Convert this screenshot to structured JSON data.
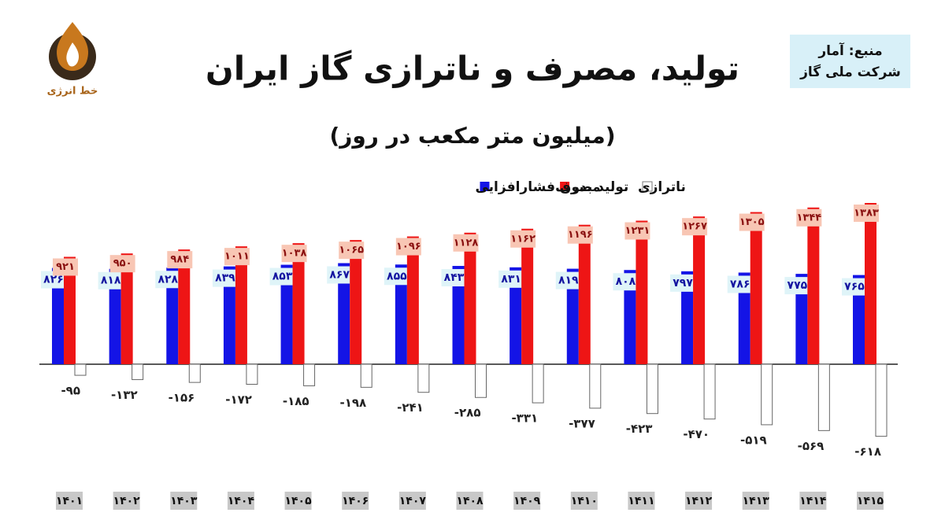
{
  "chart_data": {
    "type": "bar",
    "title": "تولید، مصرف و ناترازی گاز ایران",
    "subtitle": "(میلیون متر مکعب در روز)",
    "categories": [
      "۱۴۰۱",
      "۱۴۰۲",
      "۱۴۰۳",
      "۱۴۰۴",
      "۱۴۰۵",
      "۱۴۰۶",
      "۱۴۰۷",
      "۱۴۰۸",
      "۱۴۰۹",
      "۱۴۱۰",
      "۱۴۱۱",
      "۱۴۱۲",
      "۱۴۱۳",
      "۱۴۱۴",
      "۱۴۱۵"
    ],
    "series": [
      {
        "name": "تولید بدون فشارافزایی",
        "color": "#1414e6",
        "values": [
          826,
          818,
          828,
          839,
          853,
          867,
          855,
          843,
          831,
          819,
          808,
          797,
          786,
          775,
          765
        ],
        "value_labels": [
          "۸۲۶",
          "۸۱۸",
          "۸۲۸",
          "۸۳۹",
          "۸۵۳",
          "۸۶۷",
          "۸۵۵",
          "۸۴۳",
          "۸۳۱",
          "۸۱۹",
          "۸۰۸",
          "۷۹۷",
          "۷۸۶",
          "۷۷۵",
          "۷۶۵"
        ]
      },
      {
        "name": "مصرف",
        "color": "#ee1515",
        "values": [
          921,
          950,
          984,
          1011,
          1038,
          1065,
          1096,
          1128,
          1162,
          1196,
          1231,
          1267,
          1305,
          1344,
          1383
        ],
        "value_labels": [
          "۹۲۱",
          "۹۵۰",
          "۹۸۴",
          "۱۰۱۱",
          "۱۰۳۸",
          "۱۰۶۵",
          "۱۰۹۶",
          "۱۱۲۸",
          "۱۱۶۲",
          "۱۱۹۶",
          "۱۲۳۱",
          "۱۲۶۷",
          "۱۳۰۵",
          "۱۳۴۴",
          "۱۳۸۳"
        ]
      },
      {
        "name": "ناترازی",
        "color": "#ffffff",
        "values": [
          -95,
          -132,
          -156,
          -172,
          -185,
          -198,
          -241,
          -285,
          -331,
          -377,
          -423,
          -470,
          -519,
          -569,
          -618
        ],
        "value_labels": [
          "-۹۵",
          "-۱۳۲",
          "-۱۵۶",
          "-۱۷۲",
          "-۱۸۵",
          "-۱۹۸",
          "-۲۴۱",
          "-۲۸۵",
          "-۳۳۱",
          "-۳۷۷",
          "-۴۲۳",
          "-۴۷۰",
          "-۵۱۹",
          "-۵۶۹",
          "-۶۱۸"
        ]
      }
    ]
  },
  "source": [
    "منبع: آمار",
    "شرکت ملی گاز"
  ],
  "logo": "خط انرژی"
}
